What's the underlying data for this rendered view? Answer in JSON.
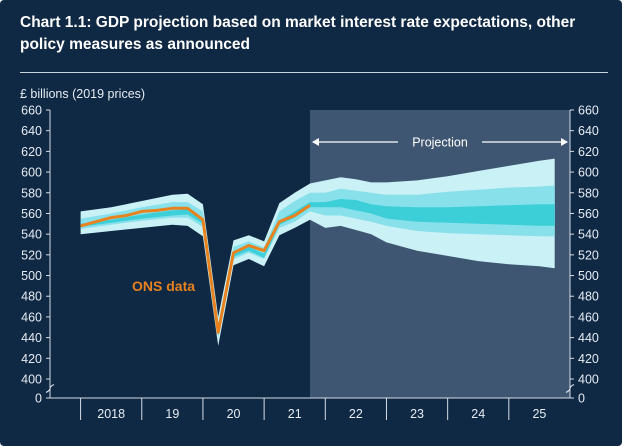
{
  "title": "Chart 1.1: GDP projection based on market interest rate expectations, other policy measures as announced",
  "chart_data": {
    "type": "line",
    "title": "Chart 1.1: GDP projection based on market interest rate expectations, other policy measures as announced",
    "ylabel": "£ billions (2019 prices)",
    "ylim": [
      400,
      660
    ],
    "y_axis_break": "0 to 400",
    "yticks": [
      0,
      400,
      420,
      440,
      460,
      480,
      500,
      520,
      540,
      560,
      580,
      600,
      620,
      640,
      660
    ],
    "ytick_labels": [
      "0",
      "400",
      "420",
      "440",
      "460",
      "480",
      "500",
      "520",
      "540",
      "560",
      "580",
      "600",
      "620",
      "640",
      "660"
    ],
    "xlim": [
      2017.5,
      2026.0
    ],
    "xticks": [
      2018.5,
      2019.5,
      2020.5,
      2021.5,
      2022.5,
      2023.5,
      2024.5,
      2025.5
    ],
    "xtick_labels": [
      "2018",
      "19",
      "20",
      "21",
      "22",
      "23",
      "24",
      "25"
    ],
    "projection_start": 2021.75,
    "projection_label": "Projection",
    "annotation": "ONS data",
    "series": [
      {
        "name": "ONS data",
        "x": [
          2018.0,
          2018.25,
          2018.5,
          2018.75,
          2019.0,
          2019.25,
          2019.5,
          2019.75,
          2020.0,
          2020.25,
          2020.5,
          2020.75,
          2021.0,
          2021.25,
          2021.5,
          2021.75
        ],
        "y": [
          548,
          552,
          556,
          558,
          562,
          563,
          565,
          565,
          554,
          445,
          522,
          529,
          524,
          552,
          558,
          568
        ]
      }
    ],
    "fan": {
      "x": [
        2018.0,
        2018.5,
        2019.0,
        2019.5,
        2019.75,
        2020.0,
        2020.25,
        2020.5,
        2020.75,
        2021.0,
        2021.25,
        2021.5,
        2021.75,
        2022.0,
        2022.25,
        2022.5,
        2022.75,
        2023.0,
        2023.5,
        2024.0,
        2024.5,
        2025.0,
        2025.5,
        2025.75
      ],
      "outer_upper": [
        562,
        566,
        572,
        578,
        579,
        569,
        460,
        534,
        539,
        533,
        570,
        580,
        589,
        592,
        595,
        593,
        590,
        590,
        592,
        596,
        601,
        606,
        611,
        613
      ],
      "outer_lower": [
        540,
        543,
        546,
        549,
        548,
        538,
        432,
        510,
        516,
        509,
        539,
        546,
        554,
        546,
        548,
        544,
        540,
        532,
        524,
        519,
        514,
        511,
        509,
        507
      ],
      "middle_upper": [
        555,
        560,
        566,
        571,
        571,
        562,
        452,
        528,
        533,
        527,
        562,
        572,
        580,
        580,
        584,
        582,
        580,
        578,
        578,
        581,
        583,
        585,
        586,
        587
      ],
      "middle_lower": [
        545,
        549,
        553,
        556,
        556,
        547,
        440,
        516,
        522,
        516,
        546,
        552,
        562,
        558,
        558,
        555,
        552,
        548,
        543,
        541,
        540,
        539,
        538,
        538
      ],
      "inner_upper": [
        550,
        554,
        559,
        563,
        564,
        555,
        446,
        522,
        528,
        521,
        553,
        562,
        571,
        571,
        574,
        573,
        569,
        567,
        566,
        566,
        567,
        568,
        569,
        569
      ],
      "inner_lower": [
        547,
        551,
        555,
        558,
        559,
        550,
        442,
        518,
        524,
        517,
        549,
        556,
        566,
        566,
        566,
        563,
        560,
        555,
        552,
        551,
        550,
        549,
        548,
        548
      ]
    }
  },
  "colors": {
    "background": "#0f2844",
    "outer_band": "#c9f1f6",
    "middle_band": "#88e0ea",
    "inner_band": "#3ccfd8",
    "ons_line": "#e8821e",
    "projection_shade": "#3f5672",
    "text": "#e6ecf2"
  }
}
